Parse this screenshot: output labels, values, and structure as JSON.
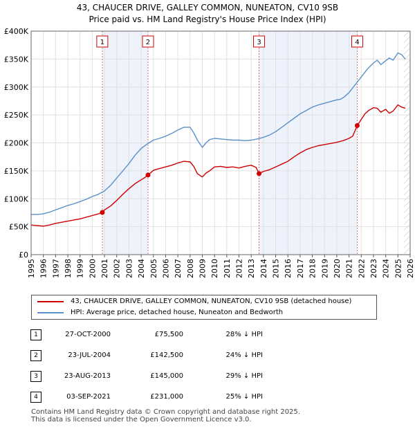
{
  "chart_data": {
    "type": "line",
    "title": "43, CHAUCER DRIVE, GALLEY COMMON, NUNEATON, CV10 9SB",
    "subtitle": "Price paid vs. HM Land Registry's House Price Index (HPI)",
    "xlim": [
      1995,
      2026
    ],
    "ylim": [
      0,
      400000
    ],
    "x_ticks": [
      "1995",
      "1996",
      "1997",
      "1998",
      "1999",
      "2000",
      "2001",
      "2002",
      "2003",
      "2004",
      "2005",
      "2006",
      "2007",
      "2008",
      "2009",
      "2010",
      "2011",
      "2012",
      "2013",
      "2014",
      "2015",
      "2016",
      "2017",
      "2018",
      "2019",
      "2020",
      "2021",
      "2022",
      "2023",
      "2024",
      "2025",
      "2026"
    ],
    "y_ticks": [
      {
        "value": 0,
        "label": "£0"
      },
      {
        "value": 50000,
        "label": "£50K"
      },
      {
        "value": 100000,
        "label": "£100K"
      },
      {
        "value": 150000,
        "label": "£150K"
      },
      {
        "value": 200000,
        "label": "£200K"
      },
      {
        "value": 250000,
        "label": "£250K"
      },
      {
        "value": 300000,
        "label": "£300K"
      },
      {
        "value": 350000,
        "label": "£350K"
      },
      {
        "value": 400000,
        "label": "£400K"
      }
    ],
    "series": [
      {
        "name": "43, CHAUCER DRIVE, GALLEY COMMON, NUNEATON, CV10 9SB (detached house)",
        "color": "#cc0000",
        "x": [
          1995.0,
          1995.5,
          1996.0,
          1996.5,
          1997.0,
          1997.5,
          1998.0,
          1998.5,
          1999.0,
          1999.5,
          2000.0,
          2000.5,
          2000.82,
          2001.0,
          2001.5,
          2002.0,
          2002.5,
          2003.0,
          2003.5,
          2004.0,
          2004.3,
          2004.56,
          2004.8,
          2005.0,
          2005.5,
          2006.0,
          2006.5,
          2007.0,
          2007.5,
          2008.0,
          2008.3,
          2008.6,
          2009.0,
          2009.3,
          2009.6,
          2010.0,
          2010.5,
          2011.0,
          2011.5,
          2012.0,
          2012.5,
          2013.0,
          2013.4,
          2013.64,
          2014.0,
          2014.5,
          2015.0,
          2015.5,
          2016.0,
          2016.5,
          2017.0,
          2017.5,
          2018.0,
          2018.5,
          2019.0,
          2019.5,
          2020.0,
          2020.5,
          2021.0,
          2021.3,
          2021.67,
          2022.0,
          2022.3,
          2022.6,
          2023.0,
          2023.3,
          2023.6,
          2024.0,
          2024.3,
          2024.6,
          2025.0,
          2025.3,
          2025.6
        ],
        "values": [
          53000,
          52000,
          51000,
          53000,
          56000,
          58000,
          60000,
          62000,
          64000,
          67000,
          70000,
          73000,
          75500,
          80000,
          87000,
          97000,
          108000,
          118000,
          127000,
          134000,
          138000,
          142500,
          147000,
          151000,
          154000,
          157000,
          160000,
          164000,
          167000,
          166000,
          158000,
          145000,
          139000,
          146000,
          150000,
          157000,
          158000,
          156000,
          157000,
          155000,
          158000,
          160000,
          156000,
          145000,
          149000,
          152000,
          157000,
          162000,
          167000,
          175000,
          182000,
          188000,
          192000,
          195000,
          197000,
          199000,
          201000,
          204000,
          208000,
          212000,
          231000,
          242000,
          252000,
          258000,
          263000,
          262000,
          255000,
          260000,
          253000,
          257000,
          268000,
          264000,
          262000
        ]
      },
      {
        "name": "HPI: Average price, detached house, Nuneaton and Bedworth",
        "color": "#5b8fc9",
        "x": [
          1995.0,
          1995.5,
          1996.0,
          1996.5,
          1997.0,
          1997.5,
          1998.0,
          1998.5,
          1999.0,
          1999.5,
          2000.0,
          2000.5,
          2001.0,
          2001.5,
          2002.0,
          2002.5,
          2003.0,
          2003.5,
          2004.0,
          2004.5,
          2005.0,
          2005.5,
          2006.0,
          2006.5,
          2007.0,
          2007.5,
          2008.0,
          2008.3,
          2008.6,
          2009.0,
          2009.3,
          2009.6,
          2010.0,
          2010.5,
          2011.0,
          2011.5,
          2012.0,
          2012.5,
          2013.0,
          2013.5,
          2014.0,
          2014.5,
          2015.0,
          2015.5,
          2016.0,
          2016.5,
          2017.0,
          2017.5,
          2018.0,
          2018.5,
          2019.0,
          2019.5,
          2020.0,
          2020.3,
          2020.6,
          2021.0,
          2021.5,
          2022.0,
          2022.5,
          2023.0,
          2023.3,
          2023.6,
          2024.0,
          2024.3,
          2024.6,
          2025.0,
          2025.3,
          2025.6
        ],
        "values": [
          72000,
          72000,
          73000,
          76000,
          80000,
          84000,
          88000,
          91000,
          95000,
          99000,
          104000,
          108000,
          114000,
          124000,
          137000,
          150000,
          163000,
          178000,
          190000,
          198000,
          205000,
          208000,
          212000,
          217000,
          223000,
          228000,
          228000,
          218000,
          205000,
          192000,
          200000,
          206000,
          208000,
          207000,
          206000,
          205000,
          205000,
          204000,
          205000,
          207000,
          210000,
          214000,
          220000,
          228000,
          236000,
          244000,
          252000,
          258000,
          264000,
          268000,
          271000,
          274000,
          277000,
          278000,
          282000,
          290000,
          304000,
          318000,
          332000,
          343000,
          348000,
          340000,
          347000,
          352000,
          348000,
          361000,
          358000,
          350000
        ]
      }
    ],
    "sale_markers": [
      {
        "label": "1",
        "x": 2000.82,
        "value": 75500
      },
      {
        "label": "2",
        "x": 2004.56,
        "value": 142500
      },
      {
        "label": "3",
        "x": 2013.64,
        "value": 145000
      },
      {
        "label": "4",
        "x": 2021.67,
        "value": 231000
      }
    ],
    "shaded_spans": [
      [
        2000.82,
        2004.56
      ],
      [
        2013.64,
        2021.67
      ],
      [
        2025.5,
        2026
      ]
    ]
  },
  "legend": [
    {
      "label": "43, CHAUCER DRIVE, GALLEY COMMON, NUNEATON, CV10 9SB (detached house)",
      "color": "#cc0000"
    },
    {
      "label": "HPI: Average price, detached house, Nuneaton and Bedworth",
      "color": "#5b8fc9"
    }
  ],
  "sales": [
    {
      "num": "1",
      "date": "27-OCT-2000",
      "price": "£75,500",
      "hpi": "28% ↓ HPI"
    },
    {
      "num": "2",
      "date": "23-JUL-2004",
      "price": "£142,500",
      "hpi": "24% ↓ HPI"
    },
    {
      "num": "3",
      "date": "23-AUG-2013",
      "price": "£145,000",
      "hpi": "29% ↓ HPI"
    },
    {
      "num": "4",
      "date": "03-SEP-2021",
      "price": "£231,000",
      "hpi": "25% ↓ HPI"
    }
  ],
  "footer": {
    "line1": "Contains HM Land Registry data © Crown copyright and database right 2025.",
    "line2": "This data is licensed under the Open Government Licence v3.0."
  }
}
